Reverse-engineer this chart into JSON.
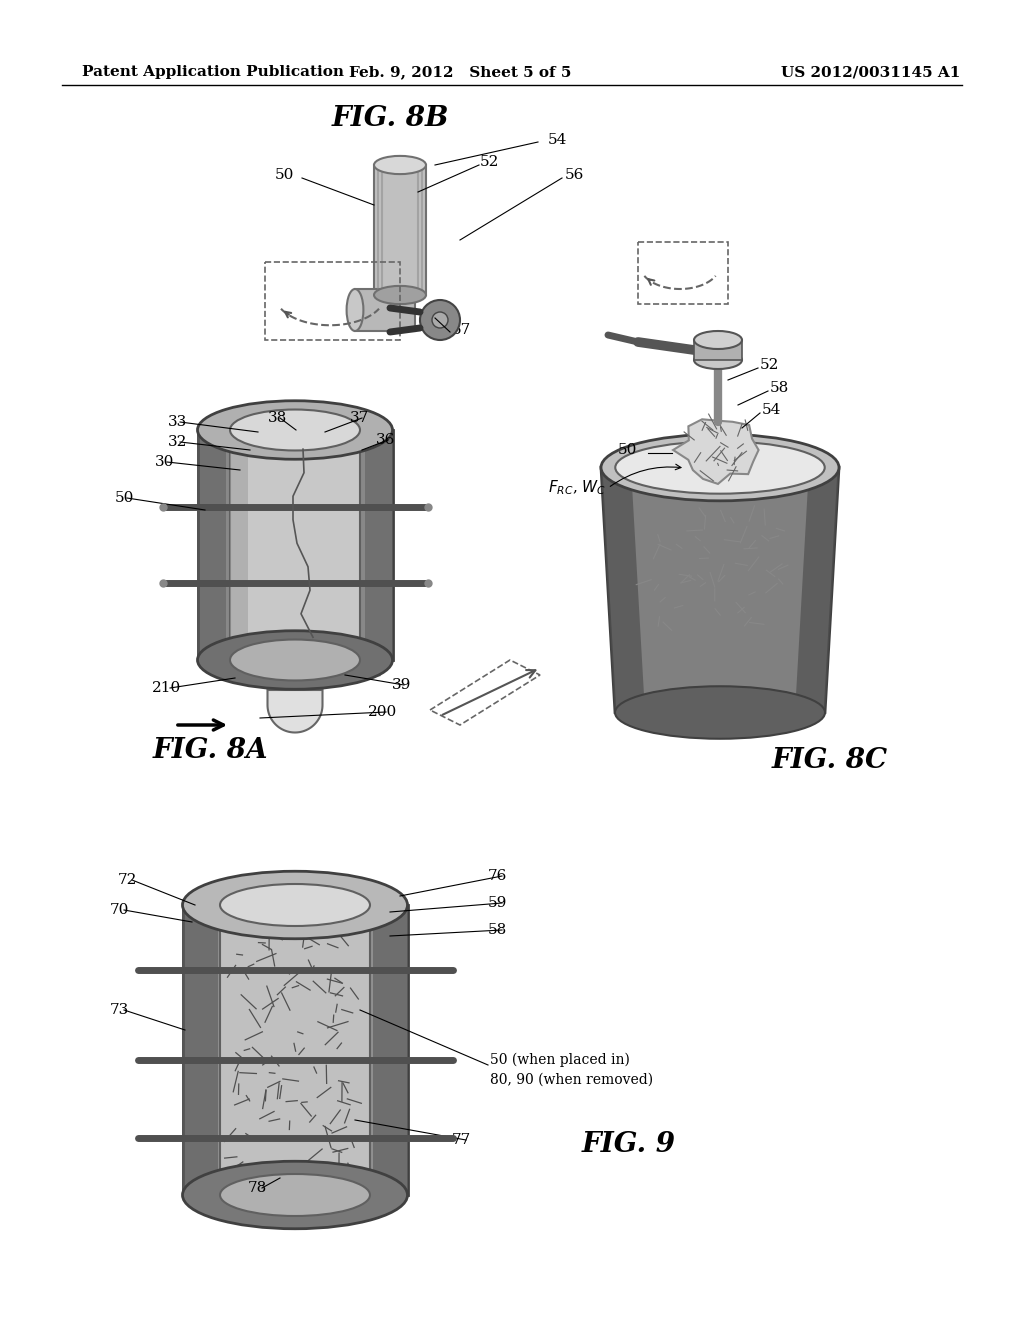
{
  "bg_color": "#ffffff",
  "header_left": "Patent Application Publication",
  "header_center": "Feb. 9, 2012   Sheet 5 of 5",
  "header_right": "US 2012/0031145 A1",
  "header_fontsize": 11,
  "fig8b_title": "FIG. 8B",
  "fig8a_title": "FIG. 8A",
  "fig8c_title": "FIG. 8C",
  "fig9_title": "FIG. 9",
  "title_fontsize": 20,
  "label_fontsize": 11,
  "note_fontsize": 10
}
